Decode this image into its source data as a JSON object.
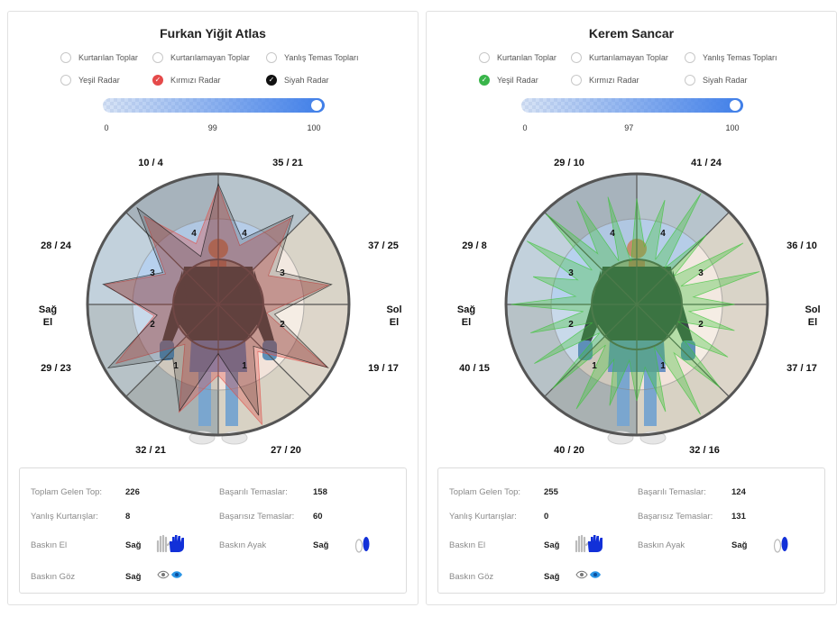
{
  "colors": {
    "red_radar": "#e0504a",
    "green_radar": "#3ec43a",
    "black_radar": "#111111",
    "slider_accent": "#3f7ee8",
    "hand_icon": "#1230d8"
  },
  "panels": [
    {
      "player_name": "Furkan Yiğit Atlas",
      "options": [
        {
          "label": "Kurtarılan Toplar",
          "checked": false
        },
        {
          "label": "Kurtarılamayan Toplar",
          "checked": false
        },
        {
          "label": "Yanlış Temas Topları",
          "checked": false
        },
        {
          "label": "Yeşil Radar",
          "checked": false
        },
        {
          "label": "Kırmızı Radar",
          "checked": true,
          "color": "red"
        },
        {
          "label": "Siyah Radar",
          "checked": true,
          "color": "black"
        }
      ],
      "slider": {
        "min_label": "0",
        "value_label": "99",
        "max_label": "100",
        "value": 99
      },
      "zone_values": [
        "10 / 4",
        "35 / 21",
        "37 / 25",
        "19 / 17",
        "27 / 20",
        "32 / 21",
        "29 / 23",
        "28 / 24"
      ],
      "side_left": "Sağ\nEl",
      "side_right": "Sol\nEl",
      "ring_numbers": [
        "1",
        "1",
        "2",
        "2",
        "3",
        "3",
        "4",
        "4"
      ],
      "radars": [
        "red",
        "black"
      ],
      "stats": {
        "total_label": "Toplam Gelen Top:",
        "total_value": "226",
        "success_label": "Başarılı Temaslar:",
        "success_value": "158",
        "wrong_label": "Yanlış Kurtarışlar:",
        "wrong_value": "8",
        "fail_label": "Başarısız Temaslar:",
        "fail_value": "60",
        "hand_label": "Baskın El",
        "hand_value": "Sağ",
        "foot_label": "Baskın Ayak",
        "foot_value": "Sağ",
        "eye_label": "Baskın Göz",
        "eye_value": "Sağ"
      }
    },
    {
      "player_name": "Kerem Sancar",
      "options": [
        {
          "label": "Kurtarılan Toplar",
          "checked": false
        },
        {
          "label": "Kurtarılamayan Toplar",
          "checked": false
        },
        {
          "label": "Yanlış Temas Topları",
          "checked": false
        },
        {
          "label": "Yeşil Radar",
          "checked": true,
          "color": "green"
        },
        {
          "label": "Kırmızı Radar",
          "checked": false
        },
        {
          "label": "Siyah Radar",
          "checked": false
        }
      ],
      "slider": {
        "min_label": "0",
        "value_label": "97",
        "max_label": "100",
        "value": 97
      },
      "zone_values": [
        "29 / 10",
        "41 / 24",
        "36 / 10",
        "37 / 17",
        "32 / 16",
        "40 / 20",
        "40 / 15",
        "29 / 8"
      ],
      "side_left": "Sağ\nEl",
      "side_right": "Sol\nEl",
      "ring_numbers": [
        "1",
        "1",
        "2",
        "2",
        "3",
        "3",
        "4",
        "4"
      ],
      "radars": [
        "green"
      ],
      "stats": {
        "total_label": "Toplam Gelen Top:",
        "total_value": "255",
        "success_label": "Başarılı Temaslar:",
        "success_value": "124",
        "wrong_label": "Yanlış Kurtarışlar:",
        "wrong_value": "0",
        "fail_label": "Başarısız Temaslar:",
        "fail_value": "131",
        "hand_label": "Baskın El",
        "hand_value": "Sağ",
        "foot_label": "Baskın Ayak",
        "foot_value": "Sağ",
        "eye_label": "Baskın Göz",
        "eye_value": "Sağ"
      }
    }
  ]
}
